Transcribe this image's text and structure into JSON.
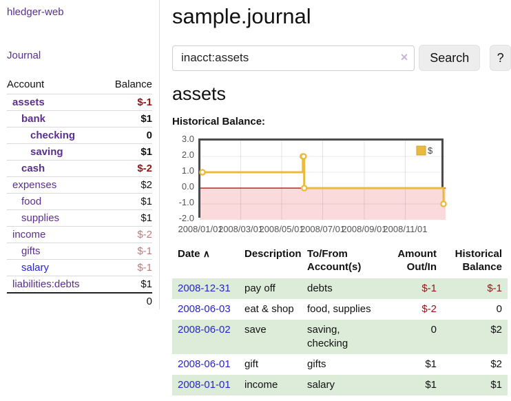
{
  "sidebar": {
    "brand": "hledger-web",
    "nav": {
      "journal": "Journal"
    },
    "table": {
      "account_header": "Account",
      "balance_header": "Balance"
    },
    "accounts": [
      {
        "name": "assets",
        "indent": 1,
        "bold": true,
        "name_tone": "purple",
        "balance": "$-1",
        "balance_tone": "neg-strong"
      },
      {
        "name": "bank",
        "indent": 2,
        "bold": true,
        "name_tone": "purple",
        "balance": "$1",
        "balance_tone": "pos"
      },
      {
        "name": "checking",
        "indent": 3,
        "bold": true,
        "name_tone": "purple",
        "balance": "0",
        "balance_tone": "pos"
      },
      {
        "name": "saving",
        "indent": 3,
        "bold": true,
        "name_tone": "purple",
        "balance": "$1",
        "balance_tone": "pos"
      },
      {
        "name": "cash",
        "indent": 2,
        "bold": true,
        "name_tone": "purple",
        "balance": "$-2",
        "balance_tone": "neg-strong"
      },
      {
        "name": "expenses",
        "indent": 1,
        "bold": false,
        "name_tone": "purple",
        "balance": "$2",
        "balance_tone": "pos"
      },
      {
        "name": "food",
        "indent": 2,
        "bold": false,
        "name_tone": "purple",
        "balance": "$1",
        "balance_tone": "pos"
      },
      {
        "name": "supplies",
        "indent": 2,
        "bold": false,
        "name_tone": "purple",
        "balance": "$1",
        "balance_tone": "pos"
      },
      {
        "name": "income",
        "indent": 1,
        "bold": false,
        "name_tone": "purple",
        "balance": "$-2",
        "balance_tone": "neg-soft"
      },
      {
        "name": "gifts",
        "indent": 2,
        "bold": false,
        "name_tone": "purple",
        "balance": "$-1",
        "balance_tone": "neg-soft"
      },
      {
        "name": "salary",
        "indent": 2,
        "bold": false,
        "name_tone": "blue",
        "balance": "$-1",
        "balance_tone": "neg-soft"
      },
      {
        "name": "liabilities:debts",
        "indent": 1,
        "bold": false,
        "name_tone": "purple",
        "balance": "$1",
        "balance_tone": "pos"
      }
    ],
    "total": "0"
  },
  "main": {
    "title": "sample.journal",
    "search": {
      "value": "inacct:assets",
      "button_label": "Search",
      "help_label": "?"
    },
    "account_title": "assets",
    "chart_label": "Historical Balance:"
  },
  "icons": {
    "clear": "×",
    "sort_ascending": "∧"
  },
  "register": {
    "headers": {
      "date": "Date",
      "description": "Description",
      "accounts": "To/From Account(s)",
      "amount": "Amount Out/In",
      "balance": "Historical Balance"
    },
    "rows": [
      {
        "date": "2008-12-31",
        "description": "pay off",
        "accounts": "debts",
        "amount": "$-1",
        "amount_negative": true,
        "balance": "$-1",
        "balance_negative": true
      },
      {
        "date": "2008-06-03",
        "description": "eat & shop",
        "accounts": "food, supplies",
        "amount": "$-2",
        "amount_negative": true,
        "balance": "0",
        "balance_negative": false
      },
      {
        "date": "2008-06-02",
        "description": "save",
        "accounts": "saving, checking",
        "amount": "0",
        "amount_negative": false,
        "balance": "$2",
        "balance_negative": false
      },
      {
        "date": "2008-06-01",
        "description": "gift",
        "accounts": "gifts",
        "amount": "$1",
        "amount_negative": false,
        "balance": "$2",
        "balance_negative": false
      },
      {
        "date": "2008-01-01",
        "description": "income",
        "accounts": "salary",
        "amount": "$1",
        "amount_negative": false,
        "balance": "$1",
        "balance_negative": false
      }
    ]
  },
  "chart_data": {
    "type": "line",
    "title": "Historical Balance:",
    "step": true,
    "x_range": [
      "2008-01-01",
      "2008-12-31"
    ],
    "ylim": [
      -2,
      3
    ],
    "y_tick_labels": [
      "3.0",
      "2.0",
      "1.0",
      "0.0",
      "-1.0",
      "-2.0"
    ],
    "x_tick_labels": [
      "2008/01/01",
      "2008/03/01",
      "2008/05/01",
      "2008/07/01",
      "2008/09/01",
      "2008/11/01"
    ],
    "legend": {
      "label": "$",
      "position": "top-right"
    },
    "grid": true,
    "negative_region_color": "#fadadb",
    "zero_line_color": "#a40000",
    "series": [
      {
        "name": "$",
        "color": "#e8bb3f",
        "marker": "circle",
        "points": [
          {
            "date": "2008-01-01",
            "value": 1
          },
          {
            "date": "2008-06-01",
            "value": 2
          },
          {
            "date": "2008-06-02",
            "value": 2
          },
          {
            "date": "2008-06-03",
            "value": 0
          },
          {
            "date": "2008-12-31",
            "value": -1
          }
        ]
      }
    ]
  },
  "colors": {
    "link_purple": "#5b2e91",
    "link_blue": "#2525d0",
    "date_link_blue": "#2525cc",
    "negative_strong": "#941414",
    "negative_soft": "#bd7b7b",
    "row_stripe_green": "#dcecd8",
    "series_gold": "#e8bb3f"
  }
}
